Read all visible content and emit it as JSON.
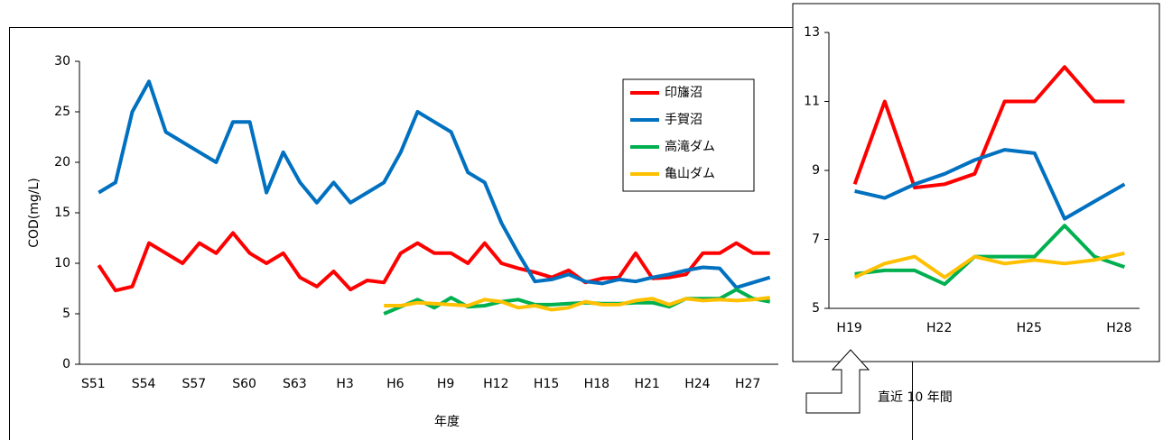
{
  "chart_data": [
    {
      "type": "line",
      "ylabel": "COD(mg/L)",
      "xlabel": "年度",
      "categories": [
        "S51",
        null,
        null,
        "S54",
        null,
        null,
        "S57",
        null,
        null,
        "S60",
        null,
        null,
        "S63",
        null,
        null,
        "H3",
        null,
        null,
        "H6",
        null,
        null,
        "H9",
        null,
        null,
        "H12",
        null,
        null,
        "H15",
        null,
        null,
        "H18",
        null,
        null,
        "H21",
        null,
        null,
        "H24",
        null,
        null,
        "H27",
        null
      ],
      "ylim": [
        0,
        30
      ],
      "yticks": [
        0,
        5,
        10,
        15,
        20,
        25,
        30
      ],
      "legend": "upper right",
      "series": [
        {
          "name": "印旛沼",
          "color": "#ff0000",
          "values": [
            9.8,
            7.3,
            7.7,
            12,
            11,
            10,
            12,
            11,
            13,
            11,
            10,
            11,
            8.6,
            7.7,
            9.2,
            7.4,
            8.3,
            8.1,
            11,
            12,
            11,
            11,
            10,
            12,
            10,
            9.5,
            9.1,
            8.6,
            9.3,
            8.1,
            8.5,
            8.6,
            11,
            8.5,
            8.6,
            8.9,
            11,
            11,
            12,
            11,
            11
          ]
        },
        {
          "name": "手賀沼",
          "color": "#0070c0",
          "values": [
            17,
            18,
            25,
            28,
            23,
            22,
            21,
            20,
            24,
            24,
            17,
            21,
            18,
            16,
            18,
            16,
            17,
            18,
            21,
            25,
            24,
            23,
            19,
            18,
            14,
            11,
            8.2,
            8.4,
            8.9,
            8.2,
            8.0,
            8.4,
            8.2,
            8.6,
            8.9,
            9.3,
            9.6,
            9.5,
            7.6,
            8.1,
            8.6
          ]
        },
        {
          "name": "高滝ダム",
          "color": "#00b050",
          "values": [
            null,
            null,
            null,
            null,
            null,
            null,
            null,
            null,
            null,
            null,
            null,
            null,
            null,
            null,
            null,
            null,
            null,
            5.0,
            5.7,
            6.4,
            5.6,
            6.6,
            5.7,
            5.8,
            6.2,
            6.4,
            5.9,
            5.9,
            6.0,
            6.1,
            6.0,
            6.0,
            6.1,
            6.1,
            5.7,
            6.5,
            6.5,
            6.5,
            7.4,
            6.5,
            6.2
          ]
        },
        {
          "name": "亀山ダム",
          "color": "#ffc000",
          "values": [
            null,
            null,
            null,
            null,
            null,
            null,
            null,
            null,
            null,
            null,
            null,
            null,
            null,
            null,
            null,
            null,
            null,
            5.8,
            5.8,
            6.1,
            6.0,
            5.9,
            5.8,
            6.4,
            6.2,
            5.6,
            5.8,
            5.4,
            5.6,
            6.2,
            5.9,
            5.9,
            6.3,
            6.5,
            5.9,
            6.5,
            6.3,
            6.4,
            6.3,
            6.4,
            6.6
          ]
        }
      ]
    },
    {
      "type": "line",
      "annotation": "直近 10 年間",
      "categories": [
        "H19",
        null,
        null,
        "H22",
        null,
        null,
        "H25",
        null,
        null,
        "H28"
      ],
      "ylim": [
        5,
        13
      ],
      "yticks": [
        5,
        7,
        9,
        11,
        13
      ],
      "series": [
        {
          "name": "印旛沼",
          "color": "#ff0000",
          "values": [
            8.6,
            11,
            8.5,
            8.6,
            8.9,
            11,
            11,
            12,
            11,
            11
          ]
        },
        {
          "name": "手賀沼",
          "color": "#0070c0",
          "values": [
            8.4,
            8.2,
            8.6,
            8.9,
            9.3,
            9.6,
            9.5,
            7.6,
            8.1,
            8.6
          ]
        },
        {
          "name": "高滝ダム",
          "color": "#00b050",
          "values": [
            6.0,
            6.1,
            6.1,
            5.7,
            6.5,
            6.5,
            6.5,
            7.4,
            6.5,
            6.2
          ]
        },
        {
          "name": "亀山ダム",
          "color": "#ffc000",
          "values": [
            5.9,
            6.3,
            6.5,
            5.9,
            6.5,
            6.3,
            6.4,
            6.3,
            6.4,
            6.6
          ]
        }
      ]
    }
  ]
}
